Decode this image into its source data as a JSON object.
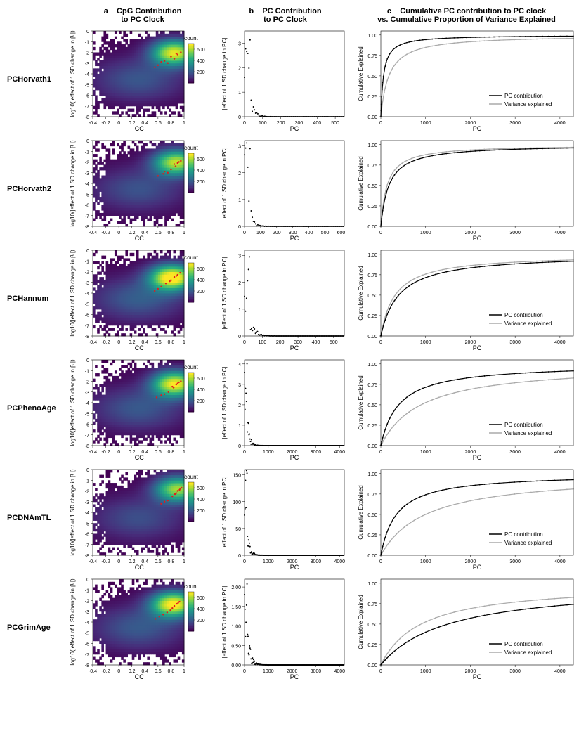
{
  "col_headers": {
    "a": {
      "tag": "a",
      "title": "CpG Contribution\nto PC Clock"
    },
    "b": {
      "tag": "b",
      "title": "PC Contribution\nto PC Clock"
    },
    "c": {
      "tag": "c",
      "title": "Cumulative PC contribution to PC clock\nvs. Cumulative Proportion of Variance Explained"
    }
  },
  "rows": [
    {
      "name": "PCHorvath1"
    },
    {
      "name": "PCHorvath2"
    },
    {
      "name": "PCHannum"
    },
    {
      "name": "PCPhenoAge"
    },
    {
      "name": "PCDNAmTL"
    },
    {
      "name": "PCGrimAge"
    }
  ],
  "panel_a": {
    "xlabel": "ICC",
    "ylabel": "log10(|effect of 1 SD change in β |)",
    "xlim": [
      -0.4,
      1.0
    ],
    "xticks": [
      -0.4,
      -0.2,
      0.0,
      0.2,
      0.4,
      0.6,
      0.8,
      1.0
    ],
    "ylim": [
      -8,
      0
    ],
    "yticks": [
      -8,
      -7,
      -6,
      -5,
      -4,
      -3,
      -2,
      -1,
      0
    ],
    "legend_label": "count",
    "legend_ticks": [
      200,
      400,
      600
    ],
    "viridis": [
      "#440154",
      "#472c7a",
      "#3b528b",
      "#2c728e",
      "#21918c",
      "#28ae80",
      "#5ec962",
      "#addc30",
      "#fde725"
    ],
    "red": "#e31a1c",
    "bg": "#ffffff",
    "rows": [
      {
        "hotspot": [
          0.85,
          -2.0
        ],
        "spread": 0.95,
        "red_pts": [
          [
            0.9,
            -2.2
          ],
          [
            0.85,
            -2.6
          ],
          [
            0.75,
            -3.0
          ],
          [
            0.7,
            -2.8
          ],
          [
            0.95,
            -2.0
          ],
          [
            0.6,
            -3.2
          ],
          [
            0.8,
            -2.4
          ],
          [
            0.88,
            -2.1
          ],
          [
            0.65,
            -2.9
          ],
          [
            0.55,
            -3.4
          ]
        ]
      },
      {
        "hotspot": [
          0.88,
          -2.0
        ],
        "spread": 0.9,
        "red_pts": [
          [
            0.92,
            -2.0
          ],
          [
            0.87,
            -2.4
          ],
          [
            0.8,
            -2.7
          ],
          [
            0.75,
            -3.0
          ],
          [
            0.95,
            -1.9
          ],
          [
            0.68,
            -3.1
          ],
          [
            0.85,
            -2.2
          ],
          [
            0.9,
            -2.1
          ],
          [
            0.7,
            -2.9
          ],
          [
            0.6,
            -3.3
          ]
        ]
      },
      {
        "hotspot": [
          0.82,
          -2.5
        ],
        "spread": 1.05,
        "red_pts": [
          [
            0.88,
            -2.4
          ],
          [
            0.8,
            -2.8
          ],
          [
            0.72,
            -3.1
          ],
          [
            0.94,
            -2.1
          ],
          [
            0.65,
            -3.4
          ],
          [
            0.85,
            -2.5
          ],
          [
            0.78,
            -2.9
          ],
          [
            0.9,
            -2.3
          ],
          [
            0.6,
            -3.6
          ],
          [
            0.55,
            -3.8
          ]
        ]
      },
      {
        "hotspot": [
          0.86,
          -2.2
        ],
        "spread": 0.98,
        "red_pts": [
          [
            0.9,
            -2.2
          ],
          [
            0.84,
            -2.6
          ],
          [
            0.76,
            -3.0
          ],
          [
            0.95,
            -2.0
          ],
          [
            0.7,
            -3.2
          ],
          [
            0.82,
            -2.5
          ],
          [
            0.88,
            -2.3
          ],
          [
            0.92,
            -2.1
          ],
          [
            0.65,
            -3.3
          ],
          [
            0.58,
            -3.5
          ]
        ]
      },
      {
        "hotspot": [
          0.9,
          -1.8
        ],
        "spread": 0.85,
        "red_pts": [
          [
            0.93,
            -1.9
          ],
          [
            0.88,
            -2.2
          ],
          [
            0.82,
            -2.5
          ],
          [
            0.96,
            -1.7
          ],
          [
            0.75,
            -2.9
          ],
          [
            0.86,
            -2.3
          ],
          [
            0.9,
            -2.0
          ],
          [
            0.94,
            -1.8
          ],
          [
            0.7,
            -3.0
          ],
          [
            0.65,
            -3.2
          ]
        ]
      },
      {
        "hotspot": [
          0.84,
          -2.3
        ],
        "spread": 1.0,
        "red_pts": [
          [
            0.89,
            -2.3
          ],
          [
            0.82,
            -2.7
          ],
          [
            0.74,
            -3.1
          ],
          [
            0.93,
            -2.1
          ],
          [
            0.68,
            -3.3
          ],
          [
            0.85,
            -2.5
          ],
          [
            0.79,
            -2.9
          ],
          [
            0.91,
            -2.2
          ],
          [
            0.62,
            -3.5
          ],
          [
            0.56,
            -3.7
          ]
        ]
      }
    ]
  },
  "panel_b": {
    "ylabel": "|effect of 1 SD change in PC|",
    "xlabel": "PC",
    "point_color": "#000000",
    "rows": [
      {
        "xlim": [
          0,
          550
        ],
        "xticks": [
          0,
          100,
          200,
          300,
          400,
          500
        ],
        "ylim": [
          0,
          3.5
        ],
        "yticks": [
          0,
          1,
          2,
          3
        ],
        "decay_k": 0.05,
        "peak": 3.3,
        "n": 90
      },
      {
        "xlim": [
          0,
          620
        ],
        "xticks": [
          0,
          100,
          200,
          300,
          400,
          500,
          600
        ],
        "ylim": [
          0,
          3.2
        ],
        "yticks": [
          0,
          1,
          2,
          3
        ],
        "decay_k": 0.05,
        "peak": 3.0,
        "n": 90
      },
      {
        "xlim": [
          0,
          560
        ],
        "xticks": [
          0,
          100,
          200,
          300,
          400,
          500
        ],
        "ylim": [
          0,
          3.2
        ],
        "yticks": [
          0,
          1,
          2,
          3
        ],
        "decay_k": 0.045,
        "peak": 3.0,
        "n": 100
      },
      {
        "xlim": [
          0,
          4200
        ],
        "xticks": [
          0,
          1000,
          2000,
          3000,
          4000
        ],
        "ylim": [
          0,
          4.2
        ],
        "yticks": [
          0,
          1,
          2,
          3,
          4
        ],
        "decay_k": 0.01,
        "peak": 4.0,
        "n": 200
      },
      {
        "xlim": [
          0,
          4200
        ],
        "xticks": [
          0,
          1000,
          2000,
          3000,
          4000
        ],
        "ylim": [
          0,
          160
        ],
        "yticks": [
          0,
          50,
          100,
          150
        ],
        "decay_k": 0.01,
        "peak": 150,
        "n": 200
      },
      {
        "xlim": [
          0,
          4200
        ],
        "xticks": [
          0,
          1000,
          2000,
          3000,
          4000
        ],
        "ylim": [
          0,
          2.2
        ],
        "yticks": [
          0.0,
          0.5,
          1.0,
          1.5,
          2.0
        ],
        "decay_k": 0.008,
        "peak": 2.0,
        "n": 200
      }
    ]
  },
  "panel_c": {
    "ylabel": "Cumulative Explained",
    "xlabel": "PC",
    "xlim": [
      0,
      4300
    ],
    "xticks": [
      0,
      1000,
      2000,
      3000,
      4000
    ],
    "ylim": [
      0,
      1.05
    ],
    "yticks": [
      0.0,
      0.25,
      0.5,
      0.75,
      1.0
    ],
    "colors": {
      "pc": "#000000",
      "var": "#aaaaaa"
    },
    "legend": [
      "PC contribution",
      "Variance explained"
    ],
    "rows": [
      {
        "pc_mid": 60,
        "var_mid": 180,
        "legend_pos": "right"
      },
      {
        "pc_mid": 180,
        "var_mid": 140,
        "legend_pos": "none"
      },
      {
        "pc_mid": 400,
        "var_mid": 320,
        "legend_pos": "right"
      },
      {
        "pc_mid": 400,
        "var_mid": 900,
        "legend_pos": "right"
      },
      {
        "pc_mid": 350,
        "var_mid": 1000,
        "legend_pos": "right"
      },
      {
        "pc_mid": 1500,
        "var_mid": 900,
        "legend_pos": "right"
      }
    ]
  }
}
